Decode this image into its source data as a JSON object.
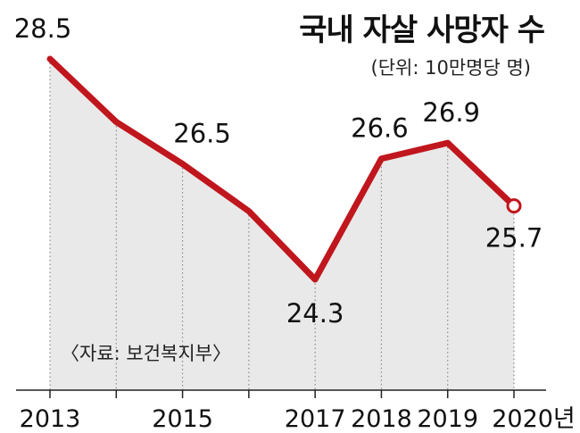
{
  "chart_data": {
    "type": "line",
    "title": "국내 자살 사망자 수",
    "subtitle": "(단위: 10만명당 명)",
    "source": "〈자료: 보건복지부〉",
    "x": [
      2013,
      2014,
      2015,
      2016,
      2017,
      2018,
      2019,
      2020
    ],
    "x_tick_labels": [
      "2013",
      "",
      "2015",
      "",
      "2017",
      "2018",
      "2019",
      "2020년"
    ],
    "series": [
      {
        "values": [
          28.5,
          27.3,
          26.5,
          25.6,
          24.3,
          26.6,
          26.9,
          25.7
        ]
      }
    ],
    "data_labels": [
      {
        "x": 2013,
        "text": "28.5"
      },
      {
        "x": 2015,
        "text": "26.5"
      },
      {
        "x": 2017,
        "text": "24.3"
      },
      {
        "x": 2018,
        "text": "26.6"
      },
      {
        "x": 2019,
        "text": "26.9"
      },
      {
        "x": 2020,
        "text": "25.7"
      }
    ],
    "ylim": [
      22.3,
      29.0
    ],
    "grid": "dotted vertical drop lines",
    "colors": {
      "line": "#c0161d",
      "area": "#e9e9e9",
      "axis": "#222222",
      "text": "#111111"
    }
  }
}
